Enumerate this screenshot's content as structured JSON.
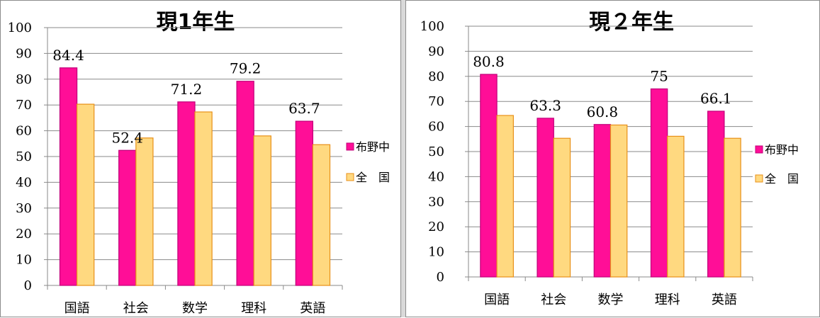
{
  "chart_data": [
    {
      "type": "bar",
      "title": "現1年生",
      "categories": [
        "国語",
        "社会",
        "数学",
        "理科",
        "英語"
      ],
      "series": [
        {
          "name": "布野中",
          "values": [
            84.4,
            52.4,
            71.2,
            79.2,
            63.7
          ],
          "color": "#ff0e97",
          "stroke": "#c0007a"
        },
        {
          "name": "全　国",
          "values": [
            70.3,
            57.2,
            67.3,
            58.0,
            54.6
          ],
          "color": "#ffd980",
          "stroke": "#e89018"
        }
      ],
      "ylim": [
        0,
        100
      ],
      "yticks": [
        "0",
        "10",
        "20",
        "30",
        "40",
        "50",
        "60",
        "70",
        "80",
        "90",
        "100"
      ],
      "data_labels": [
        "84.4",
        "52.4",
        "71.2",
        "79.2",
        "63.7"
      ],
      "grid": true,
      "legend": "right"
    },
    {
      "type": "bar",
      "title": "現２年生",
      "categories": [
        "国語",
        "社会",
        "数学",
        "理科",
        "英語"
      ],
      "series": [
        {
          "name": "布野中",
          "values": [
            80.8,
            63.3,
            60.8,
            75,
            66.1
          ],
          "color": "#ff0e97",
          "stroke": "#c0007a"
        },
        {
          "name": "全　国",
          "values": [
            64.4,
            55.3,
            60.6,
            56.1,
            55.3
          ],
          "color": "#ffd980",
          "stroke": "#e89018"
        }
      ],
      "ylim": [
        0,
        100
      ],
      "yticks": [
        "0",
        "10",
        "20",
        "30",
        "40",
        "50",
        "60",
        "70",
        "80",
        "90",
        "100"
      ],
      "data_labels": [
        "80.8",
        "63.3",
        "60.8",
        "75",
        "66.1"
      ],
      "grid": true,
      "legend": "right"
    }
  ]
}
